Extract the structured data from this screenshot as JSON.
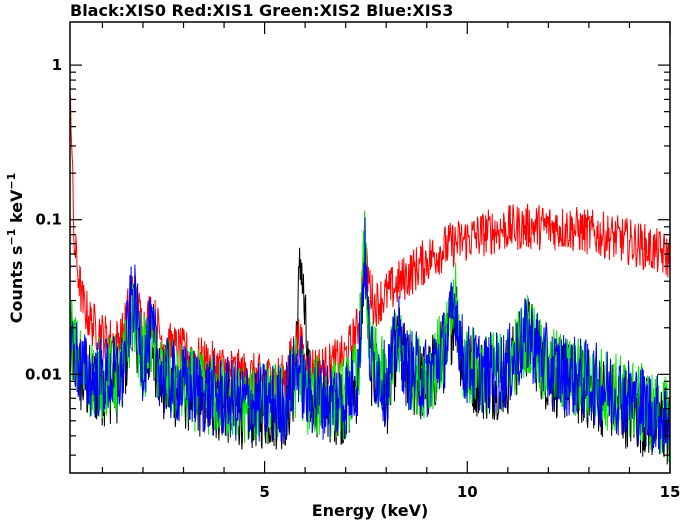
{
  "chart_data": {
    "type": "line",
    "title": "Black:XIS0 Red:XIS1 Green:XIS2 Blue:XIS3",
    "xlabel": "Energy (keV)",
    "ylabel_parts": {
      "main": "Counts s",
      "exp1": "−1",
      "mid": " keV",
      "exp2": "−1"
    },
    "xlim": [
      0.2,
      15
    ],
    "ylim": [
      0.0023,
      1.9
    ],
    "yscale": "log",
    "grid": false,
    "x_ticks": [
      5,
      10,
      15
    ],
    "x_tick_labels": [
      "5",
      "10",
      "15"
    ],
    "y_ticks": [
      0.01,
      0.1,
      1
    ],
    "y_tick_labels": [
      "0.01",
      "0.1",
      "1"
    ],
    "series": [
      {
        "color": "#000000",
        "x": [
          0.2,
          0.3,
          0.5,
          0.7,
          1.0,
          1.5,
          1.75,
          2.0,
          2.2,
          2.5,
          3.0,
          3.5,
          4.0,
          4.5,
          5.0,
          5.5,
          5.7,
          5.85,
          5.9,
          5.95,
          6.1,
          6.5,
          7.0,
          7.3,
          7.47,
          7.6,
          8.0,
          8.3,
          8.5,
          9.0,
          9.5,
          9.7,
          9.9,
          10.5,
          11.0,
          11.5,
          12.0,
          13.0,
          14.0,
          15.0
        ],
        "y": [
          0.018,
          0.013,
          0.009,
          0.0085,
          0.0085,
          0.009,
          0.028,
          0.011,
          0.017,
          0.0085,
          0.008,
          0.007,
          0.0065,
          0.006,
          0.006,
          0.006,
          0.008,
          0.035,
          0.063,
          0.033,
          0.008,
          0.0065,
          0.0065,
          0.009,
          0.065,
          0.012,
          0.007,
          0.016,
          0.01,
          0.0085,
          0.015,
          0.029,
          0.011,
          0.009,
          0.01,
          0.018,
          0.01,
          0.008,
          0.006,
          0.0045
        ]
      },
      {
        "color": "#ff0000",
        "x": [
          0.2,
          0.3,
          0.5,
          0.7,
          1.0,
          1.3,
          1.5,
          1.75,
          2.0,
          2.2,
          2.5,
          3.0,
          3.5,
          4.0,
          4.5,
          5.0,
          5.5,
          5.85,
          6.0,
          6.5,
          7.0,
          7.3,
          7.47,
          7.7,
          8.0,
          8.5,
          9.0,
          9.5,
          10.0,
          10.5,
          11.0,
          11.5,
          12.0,
          12.5,
          13.0,
          13.5,
          14.0,
          14.5,
          15.0
        ],
        "y": [
          0.9,
          0.07,
          0.03,
          0.022,
          0.018,
          0.016,
          0.018,
          0.038,
          0.02,
          0.026,
          0.016,
          0.014,
          0.012,
          0.011,
          0.01,
          0.0095,
          0.0095,
          0.018,
          0.011,
          0.011,
          0.013,
          0.02,
          0.055,
          0.028,
          0.033,
          0.043,
          0.055,
          0.067,
          0.075,
          0.083,
          0.088,
          0.09,
          0.09,
          0.088,
          0.083,
          0.078,
          0.072,
          0.065,
          0.057
        ]
      },
      {
        "color": "#00ee00",
        "x": [
          0.2,
          0.3,
          0.5,
          0.7,
          1.0,
          1.5,
          1.75,
          2.0,
          2.2,
          2.5,
          3.0,
          3.5,
          4.0,
          4.5,
          5.0,
          5.5,
          5.85,
          6.0,
          6.5,
          7.0,
          7.3,
          7.47,
          7.6,
          8.0,
          8.3,
          8.5,
          9.0,
          9.5,
          9.7,
          9.9,
          10.5,
          11.0,
          11.5,
          12.0,
          13.0,
          14.0,
          15.0
        ],
        "y": [
          0.02,
          0.014,
          0.0105,
          0.0095,
          0.0095,
          0.01,
          0.027,
          0.012,
          0.017,
          0.0095,
          0.0085,
          0.0075,
          0.007,
          0.0065,
          0.0065,
          0.0065,
          0.011,
          0.0075,
          0.007,
          0.007,
          0.0095,
          0.068,
          0.013,
          0.0085,
          0.017,
          0.011,
          0.0095,
          0.016,
          0.03,
          0.012,
          0.01,
          0.011,
          0.019,
          0.011,
          0.009,
          0.007,
          0.005
        ]
      },
      {
        "color": "#0000ff",
        "x": [
          0.2,
          0.3,
          0.5,
          0.7,
          1.0,
          1.5,
          1.75,
          2.0,
          2.2,
          2.5,
          3.0,
          3.5,
          4.0,
          4.5,
          5.0,
          5.5,
          5.85,
          6.0,
          6.5,
          7.0,
          7.3,
          7.47,
          7.6,
          8.0,
          8.3,
          8.5,
          9.0,
          9.5,
          9.7,
          9.9,
          10.5,
          11.0,
          11.5,
          12.0,
          13.0,
          14.0,
          15.0
        ],
        "y": [
          0.019,
          0.014,
          0.0105,
          0.0095,
          0.0095,
          0.01,
          0.034,
          0.012,
          0.018,
          0.0095,
          0.0085,
          0.0075,
          0.007,
          0.0065,
          0.0065,
          0.0065,
          0.012,
          0.0075,
          0.007,
          0.007,
          0.0095,
          0.064,
          0.013,
          0.0085,
          0.018,
          0.011,
          0.0095,
          0.016,
          0.03,
          0.012,
          0.01,
          0.011,
          0.018,
          0.011,
          0.009,
          0.007,
          0.005
        ]
      }
    ]
  }
}
